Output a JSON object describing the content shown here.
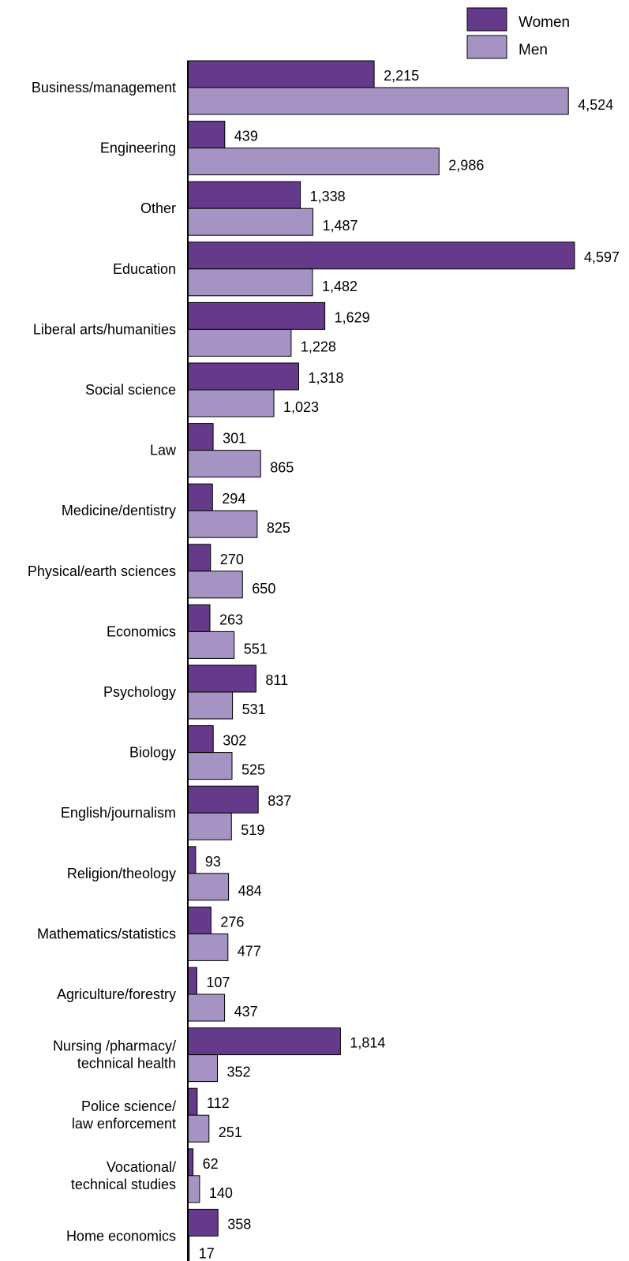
{
  "chart_data": {
    "type": "bar",
    "orientation": "horizontal",
    "title": "",
    "xlabel": "",
    "ylabel": "",
    "xlim": [
      0,
      4700
    ],
    "grid": false,
    "legend_position": "top-right",
    "categories": [
      [
        "Business/management"
      ],
      [
        "Engineering"
      ],
      [
        "Other"
      ],
      [
        "Education"
      ],
      [
        "Liberal arts/humanities"
      ],
      [
        "Social science"
      ],
      [
        "Law"
      ],
      [
        "Medicine/dentistry"
      ],
      [
        "Physical/earth sciences"
      ],
      [
        "Economics"
      ],
      [
        "Psychology"
      ],
      [
        "Biology"
      ],
      [
        "English/journalism"
      ],
      [
        "Religion/theology"
      ],
      [
        "Mathematics/statistics"
      ],
      [
        "Agriculture/forestry"
      ],
      [
        "Nursing /pharmacy/",
        "technical health"
      ],
      [
        "Police science/",
        "law enforcement"
      ],
      [
        "Vocational/",
        "technical studies"
      ],
      [
        "Home economics"
      ]
    ],
    "series": [
      {
        "name": "Women",
        "color": "#653a8a",
        "values": [
          2215,
          439,
          1338,
          4597,
          1629,
          1318,
          301,
          294,
          270,
          263,
          811,
          302,
          837,
          93,
          276,
          107,
          1814,
          112,
          62,
          358
        ],
        "labels": [
          "2,215",
          "439",
          "1,338",
          "4,597",
          "1,629",
          "1,318",
          "301",
          "294",
          "270",
          "263",
          "811",
          "302",
          "837",
          "93",
          "276",
          "107",
          "1,814",
          "112",
          "62",
          "358"
        ]
      },
      {
        "name": "Men",
        "color": "#a593c3",
        "values": [
          4524,
          2986,
          1487,
          1482,
          1228,
          1023,
          865,
          825,
          650,
          551,
          531,
          525,
          519,
          484,
          477,
          437,
          352,
          251,
          140,
          17
        ],
        "labels": [
          "4,524",
          "2,986",
          "1,487",
          "1,482",
          "1,228",
          "1,023",
          "865",
          "825",
          "650",
          "551",
          "531",
          "525",
          "519",
          "484",
          "477",
          "437",
          "352",
          "251",
          "140",
          "17"
        ]
      }
    ]
  }
}
